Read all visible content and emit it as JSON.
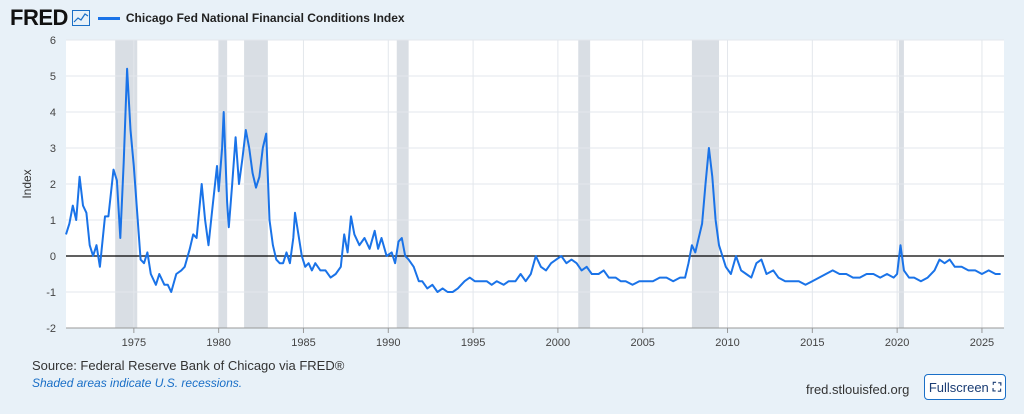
{
  "header": {
    "logo": "FRED",
    "logo_icon": "line-chart-icon",
    "series_name": "Chicago Fed National Financial Conditions Index"
  },
  "footer": {
    "source": "Source: Federal Reserve Bank of Chicago via FRED®",
    "note": "Shaded areas indicate U.S. recessions.",
    "url": "fred.stlouisfed.org",
    "fullscreen_label": "Fullscreen",
    "fullscreen_icon": "expand-icon"
  },
  "colors": {
    "line": "#1a73e8",
    "recession": "#d9dee4",
    "background": "#e8f1f8",
    "plot_bg": "#ffffff"
  },
  "chart_data": {
    "type": "line",
    "title": "",
    "xlabel": "",
    "ylabel": "Index",
    "xlim": [
      1971.0,
      2026.3
    ],
    "ylim": [
      -2,
      6
    ],
    "x_ticks": [
      1975,
      1980,
      1985,
      1990,
      1995,
      2000,
      2005,
      2010,
      2015,
      2020,
      2025
    ],
    "y_ticks": [
      -2,
      -1,
      0,
      1,
      2,
      3,
      4,
      5,
      6
    ],
    "grid": true,
    "zero_line": true,
    "recessions": [
      [
        1973.9,
        1975.2
      ],
      [
        1980.0,
        1980.5
      ],
      [
        1981.5,
        1982.9
      ],
      [
        1990.5,
        1991.2
      ],
      [
        2001.2,
        2001.9
      ],
      [
        2007.9,
        2009.5
      ],
      [
        2020.1,
        2020.4
      ]
    ],
    "series": [
      {
        "name": "Chicago Fed National Financial Conditions Index",
        "points": [
          [
            1971.0,
            0.6
          ],
          [
            1971.2,
            0.9
          ],
          [
            1971.4,
            1.4
          ],
          [
            1971.6,
            1.0
          ],
          [
            1971.8,
            2.2
          ],
          [
            1972.0,
            1.4
          ],
          [
            1972.2,
            1.2
          ],
          [
            1972.4,
            0.3
          ],
          [
            1972.6,
            0.0
          ],
          [
            1972.8,
            0.3
          ],
          [
            1973.0,
            -0.3
          ],
          [
            1973.3,
            1.1
          ],
          [
            1973.5,
            1.1
          ],
          [
            1973.8,
            2.4
          ],
          [
            1974.0,
            2.1
          ],
          [
            1974.2,
            0.5
          ],
          [
            1974.4,
            2.6
          ],
          [
            1974.6,
            5.2
          ],
          [
            1974.8,
            3.5
          ],
          [
            1975.0,
            2.5
          ],
          [
            1975.2,
            1.2
          ],
          [
            1975.4,
            -0.1
          ],
          [
            1975.6,
            -0.2
          ],
          [
            1975.8,
            0.1
          ],
          [
            1976.0,
            -0.5
          ],
          [
            1976.3,
            -0.8
          ],
          [
            1976.5,
            -0.5
          ],
          [
            1976.8,
            -0.8
          ],
          [
            1977.0,
            -0.8
          ],
          [
            1977.2,
            -1.0
          ],
          [
            1977.5,
            -0.5
          ],
          [
            1977.8,
            -0.4
          ],
          [
            1978.0,
            -0.3
          ],
          [
            1978.3,
            0.2
          ],
          [
            1978.5,
            0.6
          ],
          [
            1978.7,
            0.5
          ],
          [
            1978.9,
            1.5
          ],
          [
            1979.0,
            2.0
          ],
          [
            1979.2,
            1.0
          ],
          [
            1979.4,
            0.3
          ],
          [
            1979.6,
            1.2
          ],
          [
            1979.9,
            2.5
          ],
          [
            1980.0,
            1.8
          ],
          [
            1980.2,
            3.0
          ],
          [
            1980.3,
            4.0
          ],
          [
            1980.5,
            1.5
          ],
          [
            1980.6,
            0.8
          ],
          [
            1980.8,
            2.0
          ],
          [
            1981.0,
            3.3
          ],
          [
            1981.2,
            2.0
          ],
          [
            1981.4,
            2.7
          ],
          [
            1981.6,
            3.5
          ],
          [
            1981.8,
            3.0
          ],
          [
            1982.0,
            2.3
          ],
          [
            1982.2,
            1.9
          ],
          [
            1982.4,
            2.2
          ],
          [
            1982.6,
            3.0
          ],
          [
            1982.8,
            3.4
          ],
          [
            1983.0,
            1.0
          ],
          [
            1983.2,
            0.3
          ],
          [
            1983.4,
            -0.1
          ],
          [
            1983.6,
            -0.2
          ],
          [
            1983.8,
            -0.2
          ],
          [
            1984.0,
            0.1
          ],
          [
            1984.2,
            -0.2
          ],
          [
            1984.4,
            0.5
          ],
          [
            1984.5,
            1.2
          ],
          [
            1984.7,
            0.6
          ],
          [
            1984.9,
            0.0
          ],
          [
            1985.1,
            -0.3
          ],
          [
            1985.3,
            -0.2
          ],
          [
            1985.5,
            -0.4
          ],
          [
            1985.7,
            -0.2
          ],
          [
            1986.0,
            -0.4
          ],
          [
            1986.3,
            -0.4
          ],
          [
            1986.6,
            -0.6
          ],
          [
            1986.9,
            -0.5
          ],
          [
            1987.2,
            -0.3
          ],
          [
            1987.4,
            0.6
          ],
          [
            1987.6,
            0.1
          ],
          [
            1987.8,
            1.1
          ],
          [
            1988.0,
            0.6
          ],
          [
            1988.3,
            0.3
          ],
          [
            1988.6,
            0.5
          ],
          [
            1988.9,
            0.2
          ],
          [
            1989.2,
            0.7
          ],
          [
            1989.4,
            0.2
          ],
          [
            1989.6,
            0.5
          ],
          [
            1989.9,
            0.0
          ],
          [
            1990.2,
            0.1
          ],
          [
            1990.4,
            -0.2
          ],
          [
            1990.6,
            0.4
          ],
          [
            1990.8,
            0.5
          ],
          [
            1991.0,
            0.0
          ],
          [
            1991.2,
            -0.1
          ],
          [
            1991.5,
            -0.3
          ],
          [
            1991.8,
            -0.7
          ],
          [
            1992.0,
            -0.7
          ],
          [
            1992.3,
            -0.9
          ],
          [
            1992.6,
            -0.8
          ],
          [
            1992.9,
            -1.0
          ],
          [
            1993.2,
            -0.9
          ],
          [
            1993.5,
            -1.0
          ],
          [
            1993.8,
            -1.0
          ],
          [
            1994.1,
            -0.9
          ],
          [
            1994.5,
            -0.7
          ],
          [
            1994.8,
            -0.6
          ],
          [
            1995.1,
            -0.7
          ],
          [
            1995.5,
            -0.7
          ],
          [
            1995.8,
            -0.7
          ],
          [
            1996.1,
            -0.8
          ],
          [
            1996.4,
            -0.7
          ],
          [
            1996.8,
            -0.8
          ],
          [
            1997.1,
            -0.7
          ],
          [
            1997.5,
            -0.7
          ],
          [
            1997.8,
            -0.5
          ],
          [
            1998.1,
            -0.7
          ],
          [
            1998.4,
            -0.5
          ],
          [
            1998.7,
            0.0
          ],
          [
            1999.0,
            -0.3
          ],
          [
            1999.3,
            -0.4
          ],
          [
            1999.6,
            -0.2
          ],
          [
            1999.9,
            -0.1
          ],
          [
            2000.2,
            0.0
          ],
          [
            2000.5,
            -0.2
          ],
          [
            2000.8,
            -0.1
          ],
          [
            2001.1,
            -0.2
          ],
          [
            2001.4,
            -0.4
          ],
          [
            2001.7,
            -0.3
          ],
          [
            2002.0,
            -0.5
          ],
          [
            2002.4,
            -0.5
          ],
          [
            2002.7,
            -0.4
          ],
          [
            2003.0,
            -0.6
          ],
          [
            2003.4,
            -0.6
          ],
          [
            2003.7,
            -0.7
          ],
          [
            2004.0,
            -0.7
          ],
          [
            2004.4,
            -0.8
          ],
          [
            2004.8,
            -0.7
          ],
          [
            2005.2,
            -0.7
          ],
          [
            2005.6,
            -0.7
          ],
          [
            2006.0,
            -0.6
          ],
          [
            2006.4,
            -0.6
          ],
          [
            2006.8,
            -0.7
          ],
          [
            2007.2,
            -0.6
          ],
          [
            2007.5,
            -0.6
          ],
          [
            2007.7,
            -0.2
          ],
          [
            2007.9,
            0.3
          ],
          [
            2008.1,
            0.1
          ],
          [
            2008.3,
            0.5
          ],
          [
            2008.5,
            0.9
          ],
          [
            2008.7,
            2.0
          ],
          [
            2008.9,
            3.0
          ],
          [
            2009.1,
            2.2
          ],
          [
            2009.3,
            1.0
          ],
          [
            2009.5,
            0.3
          ],
          [
            2009.7,
            0.0
          ],
          [
            2009.9,
            -0.3
          ],
          [
            2010.2,
            -0.5
          ],
          [
            2010.5,
            0.0
          ],
          [
            2010.8,
            -0.4
          ],
          [
            2011.1,
            -0.5
          ],
          [
            2011.4,
            -0.6
          ],
          [
            2011.7,
            -0.2
          ],
          [
            2012.0,
            -0.1
          ],
          [
            2012.3,
            -0.5
          ],
          [
            2012.7,
            -0.4
          ],
          [
            2013.0,
            -0.6
          ],
          [
            2013.4,
            -0.7
          ],
          [
            2013.8,
            -0.7
          ],
          [
            2014.2,
            -0.7
          ],
          [
            2014.6,
            -0.8
          ],
          [
            2015.0,
            -0.7
          ],
          [
            2015.4,
            -0.6
          ],
          [
            2015.8,
            -0.5
          ],
          [
            2016.2,
            -0.4
          ],
          [
            2016.6,
            -0.5
          ],
          [
            2017.0,
            -0.5
          ],
          [
            2017.4,
            -0.6
          ],
          [
            2017.8,
            -0.6
          ],
          [
            2018.2,
            -0.5
          ],
          [
            2018.6,
            -0.5
          ],
          [
            2019.0,
            -0.6
          ],
          [
            2019.4,
            -0.5
          ],
          [
            2019.8,
            -0.6
          ],
          [
            2020.0,
            -0.5
          ],
          [
            2020.2,
            0.3
          ],
          [
            2020.4,
            -0.4
          ],
          [
            2020.7,
            -0.6
          ],
          [
            2021.0,
            -0.6
          ],
          [
            2021.4,
            -0.7
          ],
          [
            2021.8,
            -0.6
          ],
          [
            2022.2,
            -0.4
          ],
          [
            2022.5,
            -0.1
          ],
          [
            2022.8,
            -0.2
          ],
          [
            2023.1,
            -0.1
          ],
          [
            2023.4,
            -0.3
          ],
          [
            2023.8,
            -0.3
          ],
          [
            2024.2,
            -0.4
          ],
          [
            2024.6,
            -0.4
          ],
          [
            2025.0,
            -0.5
          ],
          [
            2025.4,
            -0.4
          ],
          [
            2025.8,
            -0.5
          ],
          [
            2026.1,
            -0.5
          ]
        ]
      }
    ]
  }
}
